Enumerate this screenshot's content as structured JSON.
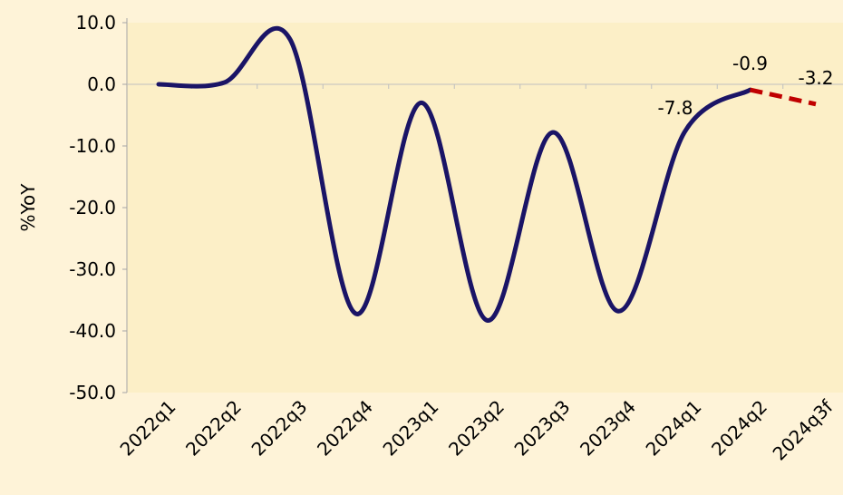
{
  "chart_data": {
    "type": "line",
    "ylabel": "%YoY",
    "ylim": [
      -50,
      10
    ],
    "yticks": [
      "10.0",
      "0.0",
      "-10.0",
      "-20.0",
      "-30.0",
      "-40.0",
      "-50.0"
    ],
    "categories": [
      "2022q1",
      "2022q2",
      "2022q3",
      "2022q4",
      "2023q1",
      "2023q2",
      "2023q3",
      "2023q4",
      "2024q1",
      "2024q2",
      "2024q3f"
    ],
    "series": [
      {
        "values": [
          0.0,
          0.3,
          7.3,
          -37.2,
          -3.0,
          -38.3,
          -7.8,
          -36.8,
          -7.8,
          -0.9,
          null
        ],
        "color": "#1a1466",
        "style": "solid"
      },
      {
        "values": [
          null,
          null,
          null,
          null,
          null,
          null,
          null,
          null,
          null,
          -0.9,
          -3.2
        ],
        "color": "#c00000",
        "style": "dashed"
      }
    ],
    "data_labels": [
      {
        "text": "-7.8",
        "category_index": 8
      },
      {
        "text": "-0.9",
        "category_index": 9
      },
      {
        "text": "-3.2",
        "category_index": 10
      }
    ],
    "plot_background": "#fcefc7",
    "grid": false
  }
}
